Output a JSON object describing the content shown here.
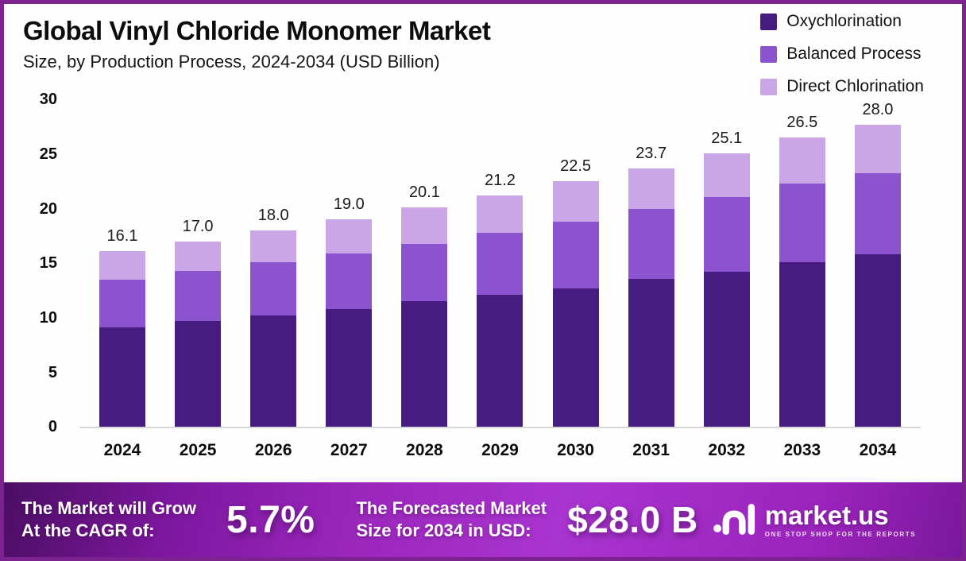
{
  "header": {
    "title": "Global Vinyl Chloride Monomer Market",
    "subtitle": "Size, by Production Process, 2024-2034 (USD Billion)"
  },
  "legend": {
    "items": [
      {
        "label": "Oxychlorination",
        "color": "#471c80"
      },
      {
        "label": "Balanced Process",
        "color": "#8b53cd"
      },
      {
        "label": "Direct Chlorination",
        "color": "#cba6e7"
      }
    ]
  },
  "chart_data": {
    "type": "bar",
    "stacked": true,
    "title": "Global Vinyl Chloride Monomer Market Size, by Production Process, 2024-2034 (USD Billion)",
    "xlabel": "",
    "ylabel": "USD Billion",
    "ylim": [
      0,
      30
    ],
    "y_ticks": [
      0,
      5,
      10,
      15,
      20,
      25,
      30
    ],
    "grid": false,
    "legend_position": "top-right",
    "categories": [
      "2024",
      "2025",
      "2026",
      "2027",
      "2028",
      "2029",
      "2030",
      "2031",
      "2032",
      "2033",
      "2034"
    ],
    "series": [
      {
        "name": "Oxychlorination",
        "color": "#471c80",
        "values": [
          9.1,
          9.7,
          10.2,
          10.8,
          11.5,
          12.1,
          12.7,
          13.6,
          14.2,
          15.1,
          16.0
        ]
      },
      {
        "name": "Balanced Process",
        "color": "#8b53cd",
        "values": [
          4.4,
          4.6,
          4.9,
          5.1,
          5.3,
          5.7,
          6.1,
          6.4,
          6.9,
          7.2,
          7.5
        ]
      },
      {
        "name": "Direct Chlorination",
        "color": "#cba6e7",
        "values": [
          2.6,
          2.7,
          2.9,
          3.1,
          3.3,
          3.4,
          3.7,
          3.7,
          4.0,
          4.2,
          4.5
        ]
      }
    ],
    "total_labels": [
      "16.1",
      "17.0",
      "18.0",
      "19.0",
      "20.1",
      "21.2",
      "22.5",
      "23.7",
      "25.1",
      "26.5",
      "28.0"
    ]
  },
  "banner": {
    "cagr_label": "The Market will Grow\nAt the CAGR of:",
    "cagr_value": "5.7%",
    "forecast_label": "The Forecasted Market\nSize for 2034 in USD:",
    "forecast_value": "$28.0 B",
    "brand": {
      "name": "market.us",
      "tagline": "ONE STOP SHOP FOR THE REPORTS",
      "logo_icon": "market-us-squiggle-m"
    }
  },
  "colors": {
    "frame_border": "#7d2391",
    "axis_line": "#d8d8d8",
    "banner_gradient_start": "#4b0e63",
    "banner_gradient_end": "#a934d0",
    "text_dark": "#0c0c0c",
    "text_white": "#ffffff"
  }
}
